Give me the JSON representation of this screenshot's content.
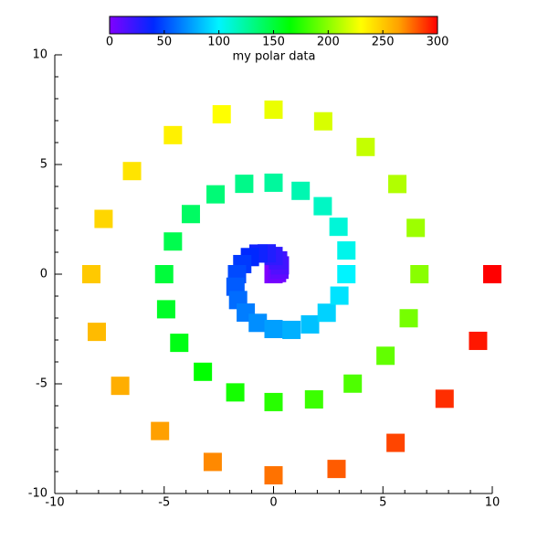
{
  "chart_data": {
    "type": "scatter",
    "x": [
      0,
      0.16,
      0.27,
      0.29,
      0.21,
      0,
      -0.31,
      -0.69,
      -1.08,
      -1.43,
      -1.67,
      -1.74,
      -1.62,
      -1.27,
      -0.72,
      0,
      0.82,
      1.67,
      2.43,
      3.01,
      3.33,
      3.33,
      2.97,
      2.25,
      1.24,
      0,
      -1.34,
      -2.65,
      -3.78,
      -4.6,
      -5,
      -4.91,
      -4.31,
      -3.23,
      -1.75,
      0,
      1.85,
      3.62,
      5.12,
      6.18,
      6.67,
      6.5,
      5.66,
      4.21,
      2.27,
      0,
      -2.37,
      -4.6,
      -6.47,
      -7.77,
      -8.33,
      -8.08,
      -7.01,
      -5.19,
      -2.78,
      0,
      2.88,
      5.58,
      7.82,
      9.35,
      10
    ],
    "y": [
      0,
      0.05,
      0.2,
      0.4,
      0.63,
      0.83,
      0.95,
      0.94,
      0.78,
      0.46,
      0,
      -0.57,
      -1.18,
      -1.75,
      -2.22,
      -2.5,
      -2.54,
      -2.29,
      -1.76,
      -0.98,
      0,
      1.08,
      2.16,
      3.1,
      3.8,
      4.17,
      4.12,
      3.64,
      2.74,
      1.49,
      0,
      -1.6,
      -3.13,
      -4.45,
      -5.39,
      -5.83,
      -5.71,
      -4.99,
      -3.72,
      -2.01,
      0,
      2.11,
      4.11,
      5.8,
      6.97,
      7.5,
      7.29,
      6.34,
      4.7,
      2.52,
      0,
      -2.63,
      -5.09,
      -7.15,
      -8.56,
      -9.17,
      -8.88,
      -7.69,
      -5.68,
      -3.04,
      0
    ],
    "color_values": [
      0,
      5,
      10,
      15,
      20,
      25,
      30,
      35,
      40,
      45,
      50,
      55,
      60,
      65,
      70,
      75,
      80,
      85,
      90,
      95,
      100,
      105,
      110,
      115,
      120,
      125,
      130,
      135,
      140,
      145,
      150,
      155,
      160,
      165,
      170,
      175,
      180,
      185,
      190,
      195,
      200,
      205,
      210,
      215,
      220,
      225,
      230,
      235,
      240,
      245,
      250,
      255,
      260,
      265,
      270,
      275,
      280,
      285,
      290,
      295,
      300
    ],
    "marker": "square",
    "xlim": [
      -10,
      10
    ],
    "xticks": [
      -10,
      -5,
      0,
      5,
      10
    ],
    "ylim": [
      -10,
      10
    ],
    "yticks": [
      -10,
      -5,
      0,
      5,
      10
    ],
    "colorbar": {
      "label": "my polar data",
      "lim": [
        0,
        300
      ],
      "ticks": [
        0,
        50,
        100,
        150,
        200,
        250,
        300
      ]
    },
    "colormap": [
      [
        0,
        "#8000ff"
      ],
      [
        40,
        "#0028ff"
      ],
      [
        100,
        "#00f4ff"
      ],
      [
        165,
        "#00ff00"
      ],
      [
        230,
        "#ffff00"
      ],
      [
        265,
        "#ffa000"
      ],
      [
        300,
        "#ff0000"
      ]
    ]
  }
}
